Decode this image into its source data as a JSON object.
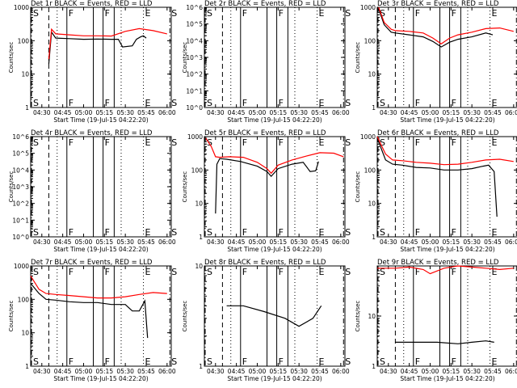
{
  "figure": {
    "background": "#ffffff",
    "axis_color": "#000000",
    "events_color": "#000000",
    "lld_color": "#ff0000",
    "xtick_labels": [
      "04:30",
      "04:45",
      "05:00",
      "05:15",
      "05:30",
      "05:45",
      "06:00"
    ],
    "xlabel": "Start Time (19-Jul-15 04:22:20)",
    "ylabel": "Counts/sec"
  },
  "chart_data": [
    {
      "type": "line",
      "title": "Det 1r BLACK = Events, RED = LLD",
      "ylim": [
        1,
        1000
      ],
      "ylog": true,
      "ytick_labels": [
        "1",
        "10",
        "100",
        "1000"
      ],
      "markers": [
        {
          "label": "S",
          "style": "dashdot",
          "t": "04:22"
        },
        {
          "label": "",
          "style": "dashed",
          "t": "04:35"
        },
        {
          "label": "",
          "style": "dotted",
          "t": "04:41"
        },
        {
          "label": "F",
          "style": "solid",
          "t": "04:48"
        },
        {
          "label": "",
          "style": "solid",
          "t": "05:07"
        },
        {
          "label": "F",
          "style": "solid",
          "t": "05:14"
        },
        {
          "label": "",
          "style": "solid",
          "t": "05:22"
        },
        {
          "label": "",
          "style": "dotted",
          "t": "05:27"
        },
        {
          "label": "E",
          "style": "dotted",
          "t": "05:43"
        },
        {
          "label": "S",
          "style": "dashdot",
          "t": "06:02"
        }
      ],
      "series": [
        {
          "role": "events",
          "t": [
            "04:35",
            "04:37",
            "04:40",
            "04:50",
            "05:00",
            "05:10",
            "05:20",
            "05:25",
            "05:28",
            "05:35",
            "05:38",
            "05:41",
            "05:43",
            "05:45"
          ],
          "values": [
            20,
            180,
            120,
            115,
            110,
            112,
            110,
            110,
            65,
            70,
            110,
            130,
            140,
            120
          ]
        },
        {
          "role": "lld",
          "t": [
            "04:35",
            "04:37",
            "04:40",
            "04:50",
            "05:00",
            "05:10",
            "05:20",
            "05:30",
            "05:40",
            "05:50",
            "06:00"
          ],
          "values": [
            28,
            220,
            160,
            150,
            140,
            140,
            138,
            190,
            230,
            200,
            160
          ]
        }
      ]
    },
    {
      "type": "line",
      "title": "Det 2r BLACK = Events, RED = LLD",
      "ylim": [
        1,
        1000000
      ],
      "ylog": true,
      "ytick_labels": [
        "10^0",
        "10^1",
        "10^2",
        "10^3",
        "10^4",
        "10^5",
        "10^6"
      ],
      "markers": [
        {
          "label": "S",
          "style": "dashdot",
          "t": "04:22"
        },
        {
          "label": "",
          "style": "dashed",
          "t": "04:35"
        },
        {
          "label": "",
          "style": "dotted",
          "t": "04:41"
        },
        {
          "label": "F",
          "style": "solid",
          "t": "04:48"
        },
        {
          "label": "",
          "style": "solid",
          "t": "05:07"
        },
        {
          "label": "F",
          "style": "solid",
          "t": "05:14"
        },
        {
          "label": "",
          "style": "solid",
          "t": "05:22"
        },
        {
          "label": "",
          "style": "dotted",
          "t": "05:27"
        },
        {
          "label": "E",
          "style": "dotted",
          "t": "05:43"
        },
        {
          "label": "S",
          "style": "dashdot",
          "t": "06:02"
        }
      ],
      "series": []
    },
    {
      "type": "line",
      "title": "Det 3r BLACK = Events, RED = LLD",
      "ylim": [
        1,
        1000
      ],
      "ylog": true,
      "ytick_labels": [
        "1",
        "10",
        "100",
        "1000"
      ],
      "markers": [
        {
          "label": "S",
          "style": "dashdot",
          "t": "04:22"
        },
        {
          "label": "",
          "style": "dashed",
          "t": "04:35"
        },
        {
          "label": "",
          "style": "dotted",
          "t": "04:41"
        },
        {
          "label": "F",
          "style": "solid",
          "t": "04:48"
        },
        {
          "label": "",
          "style": "solid",
          "t": "05:07"
        },
        {
          "label": "F",
          "style": "solid",
          "t": "05:14"
        },
        {
          "label": "",
          "style": "solid",
          "t": "05:22"
        },
        {
          "label": "",
          "style": "dotted",
          "t": "05:27"
        },
        {
          "label": "E",
          "style": "dotted",
          "t": "05:43"
        },
        {
          "label": "S",
          "style": "dashdot",
          "t": "06:02"
        }
      ],
      "series": [
        {
          "role": "events",
          "t": [
            "04:23",
            "04:27",
            "04:32",
            "04:35",
            "04:45",
            "04:55",
            "05:02",
            "05:08",
            "05:14",
            "05:20",
            "05:30",
            "05:40",
            "05:45"
          ],
          "values": [
            900,
            300,
            180,
            170,
            150,
            130,
            95,
            65,
            90,
            110,
            130,
            170,
            150
          ]
        },
        {
          "role": "lld",
          "t": [
            "04:23",
            "04:27",
            "04:32",
            "04:35",
            "04:45",
            "04:55",
            "05:02",
            "05:08",
            "05:14",
            "05:20",
            "05:30",
            "05:40",
            "05:50",
            "06:00"
          ],
          "values": [
            1000,
            350,
            220,
            200,
            190,
            170,
            120,
            80,
            120,
            150,
            180,
            230,
            240,
            190
          ]
        }
      ]
    },
    {
      "type": "line",
      "title": "Det 4r BLACK = Events, RED = LLD",
      "ylim": [
        1,
        1000000
      ],
      "ylog": true,
      "ytick_labels": [
        "10^0",
        "10^1",
        "10^2",
        "10^3",
        "10^4",
        "10^5",
        "10^6"
      ],
      "markers": [
        {
          "label": "S",
          "style": "dashdot",
          "t": "04:22"
        },
        {
          "label": "",
          "style": "dashed",
          "t": "04:35"
        },
        {
          "label": "",
          "style": "dotted",
          "t": "04:41"
        },
        {
          "label": "F",
          "style": "solid",
          "t": "04:48"
        },
        {
          "label": "",
          "style": "solid",
          "t": "05:07"
        },
        {
          "label": "F",
          "style": "solid",
          "t": "05:14"
        },
        {
          "label": "",
          "style": "solid",
          "t": "05:22"
        },
        {
          "label": "",
          "style": "dotted",
          "t": "05:27"
        },
        {
          "label": "E",
          "style": "dotted",
          "t": "05:43"
        },
        {
          "label": "S",
          "style": "dashdot",
          "t": "06:02"
        }
      ],
      "series": []
    },
    {
      "type": "line",
      "title": "Det 5r BLACK = Events, RED = LLD",
      "ylim": [
        1,
        1000
      ],
      "ylog": true,
      "ytick_labels": [
        "1",
        "10",
        "100",
        "1000"
      ],
      "markers": [
        {
          "label": "S",
          "style": "dashdot",
          "t": "04:22"
        },
        {
          "label": "",
          "style": "dashed",
          "t": "04:35"
        },
        {
          "label": "",
          "style": "dotted",
          "t": "04:41"
        },
        {
          "label": "F",
          "style": "solid",
          "t": "04:48"
        },
        {
          "label": "",
          "style": "solid",
          "t": "05:07"
        },
        {
          "label": "F",
          "style": "solid",
          "t": "05:14"
        },
        {
          "label": "",
          "style": "solid",
          "t": "05:22"
        },
        {
          "label": "",
          "style": "dotted",
          "t": "05:27"
        },
        {
          "label": "E",
          "style": "dotted",
          "t": "05:43"
        },
        {
          "label": "S",
          "style": "dashdot",
          "t": "06:02"
        }
      ],
      "series": [
        {
          "role": "events",
          "t": [
            "04:30",
            "04:31",
            "04:33",
            "04:38",
            "04:48",
            "05:00",
            "05:07",
            "05:10",
            "05:15",
            "05:25",
            "05:33",
            "05:38",
            "05:42",
            "05:44"
          ],
          "values": [
            5,
            150,
            220,
            210,
            180,
            130,
            90,
            65,
            110,
            150,
            170,
            90,
            95,
            180
          ]
        },
        {
          "role": "lld",
          "t": [
            "04:23",
            "04:27",
            "04:30",
            "04:33",
            "04:40",
            "04:50",
            "05:00",
            "05:07",
            "05:10",
            "05:15",
            "05:25",
            "05:35",
            "05:45",
            "05:55",
            "06:02"
          ],
          "values": [
            900,
            500,
            250,
            240,
            250,
            240,
            170,
            110,
            80,
            140,
            200,
            260,
            330,
            320,
            250
          ]
        }
      ]
    },
    {
      "type": "line",
      "title": "Det 6r BLACK = Events, RED = LLD",
      "ylim": [
        1,
        1000
      ],
      "ylog": true,
      "ytick_labels": [
        "1",
        "10",
        "100",
        "1000"
      ],
      "markers": [
        {
          "label": "S",
          "style": "dashdot",
          "t": "04:22"
        },
        {
          "label": "",
          "style": "dashed",
          "t": "04:35"
        },
        {
          "label": "",
          "style": "dotted",
          "t": "04:41"
        },
        {
          "label": "F",
          "style": "solid",
          "t": "04:48"
        },
        {
          "label": "",
          "style": "solid",
          "t": "05:07"
        },
        {
          "label": "F",
          "style": "solid",
          "t": "05:14"
        },
        {
          "label": "",
          "style": "solid",
          "t": "05:22"
        },
        {
          "label": "",
          "style": "dotted",
          "t": "05:27"
        },
        {
          "label": "E",
          "style": "dotted",
          "t": "05:43"
        },
        {
          "label": "S",
          "style": "dashdot",
          "t": "06:02"
        }
      ],
      "series": [
        {
          "role": "events",
          "t": [
            "04:22",
            "04:28",
            "04:33",
            "04:40",
            "04:50",
            "05:00",
            "05:10",
            "05:20",
            "05:30",
            "05:38",
            "05:42",
            "05:46",
            "05:48"
          ],
          "values": [
            900,
            200,
            150,
            140,
            120,
            115,
            100,
            100,
            110,
            130,
            140,
            90,
            4
          ]
        },
        {
          "role": "lld",
          "t": [
            "04:22",
            "04:28",
            "04:33",
            "04:40",
            "04:50",
            "05:00",
            "05:10",
            "05:20",
            "05:30",
            "05:40",
            "05:50",
            "06:00"
          ],
          "values": [
            1000,
            300,
            200,
            190,
            170,
            160,
            145,
            150,
            170,
            200,
            210,
            180
          ]
        }
      ]
    },
    {
      "type": "line",
      "title": "Det 7r BLACK = Events, RED = LLD",
      "ylim": [
        1,
        1000
      ],
      "ylog": true,
      "ytick_labels": [
        "1",
        "10",
        "100",
        "1000"
      ],
      "markers": [
        {
          "label": "S",
          "style": "dashdot",
          "t": "04:22"
        },
        {
          "label": "",
          "style": "dashed",
          "t": "04:35"
        },
        {
          "label": "",
          "style": "dotted",
          "t": "04:41"
        },
        {
          "label": "F",
          "style": "solid",
          "t": "04:48"
        },
        {
          "label": "",
          "style": "solid",
          "t": "05:07"
        },
        {
          "label": "F",
          "style": "solid",
          "t": "05:14"
        },
        {
          "label": "",
          "style": "solid",
          "t": "05:22"
        },
        {
          "label": "",
          "style": "dotted",
          "t": "05:27"
        },
        {
          "label": "E",
          "style": "dotted",
          "t": "05:43"
        },
        {
          "label": "S",
          "style": "dashdot",
          "t": "06:02"
        }
      ],
      "series": [
        {
          "role": "events",
          "t": [
            "04:22",
            "04:28",
            "04:33",
            "04:40",
            "04:50",
            "05:00",
            "05:10",
            "05:20",
            "05:30",
            "05:35",
            "05:40",
            "05:44",
            "05:46"
          ],
          "values": [
            300,
            150,
            100,
            95,
            85,
            80,
            80,
            70,
            70,
            45,
            45,
            90,
            7
          ]
        },
        {
          "role": "lld",
          "t": [
            "04:22",
            "04:28",
            "04:33",
            "04:40",
            "04:50",
            "05:00",
            "05:10",
            "05:20",
            "05:30",
            "05:40",
            "05:50",
            "06:00"
          ],
          "values": [
            500,
            200,
            150,
            140,
            130,
            120,
            110,
            110,
            120,
            140,
            160,
            150
          ]
        }
      ]
    },
    {
      "type": "line",
      "title": "Det 8r BLACK = Events, RED = LLD",
      "ylim": [
        1,
        10
      ],
      "ylog": true,
      "ytick_labels": [
        "1",
        "10"
      ],
      "markers": [
        {
          "label": "S",
          "style": "dashdot",
          "t": "04:22"
        },
        {
          "label": "",
          "style": "dashed",
          "t": "04:35"
        },
        {
          "label": "",
          "style": "dotted",
          "t": "04:41"
        },
        {
          "label": "F",
          "style": "solid",
          "t": "04:48"
        },
        {
          "label": "",
          "style": "solid",
          "t": "05:07"
        },
        {
          "label": "F",
          "style": "solid",
          "t": "05:14"
        },
        {
          "label": "",
          "style": "solid",
          "t": "05:22"
        },
        {
          "label": "",
          "style": "dotted",
          "t": "05:27"
        },
        {
          "label": "E",
          "style": "dotted",
          "t": "05:43"
        },
        {
          "label": "S",
          "style": "dashdot",
          "t": "06:02"
        }
      ],
      "series": [
        {
          "role": "events",
          "t": [
            "04:38",
            "04:50",
            "05:05",
            "05:20",
            "05:30",
            "05:40",
            "05:46"
          ],
          "values": [
            4,
            4,
            3.5,
            3,
            2.5,
            3,
            4
          ]
        }
      ]
    },
    {
      "type": "line",
      "title": "Det 9r BLACK = Events, RED = LLD",
      "ylim": [
        1,
        100
      ],
      "ylog": true,
      "ytick_labels": [
        "1",
        "10"
      ],
      "markers": [
        {
          "label": "S",
          "style": "dashdot",
          "t": "04:22"
        },
        {
          "label": "",
          "style": "dashed",
          "t": "04:35"
        },
        {
          "label": "",
          "style": "dotted",
          "t": "04:41"
        },
        {
          "label": "F",
          "style": "solid",
          "t": "04:48"
        },
        {
          "label": "",
          "style": "solid",
          "t": "05:07"
        },
        {
          "label": "F",
          "style": "solid",
          "t": "05:14"
        },
        {
          "label": "",
          "style": "solid",
          "t": "05:22"
        },
        {
          "label": "",
          "style": "dotted",
          "t": "05:27"
        },
        {
          "label": "E",
          "style": "dotted",
          "t": "05:43"
        },
        {
          "label": "S",
          "style": "dashdot",
          "t": "06:02"
        }
      ],
      "series": [
        {
          "role": "events",
          "t": [
            "04:35",
            "04:50",
            "05:05",
            "05:20",
            "05:30",
            "05:40",
            "05:46"
          ],
          "values": [
            3,
            3,
            3,
            2.8,
            3,
            3.2,
            3
          ]
        },
        {
          "role": "lld",
          "t": [
            "04:22",
            "04:35",
            "04:45",
            "04:55",
            "05:00",
            "05:10",
            "05:20",
            "05:30",
            "05:40",
            "05:50",
            "06:00"
          ],
          "values": [
            90,
            90,
            95,
            85,
            70,
            90,
            100,
            95,
            90,
            85,
            90
          ]
        }
      ]
    }
  ]
}
